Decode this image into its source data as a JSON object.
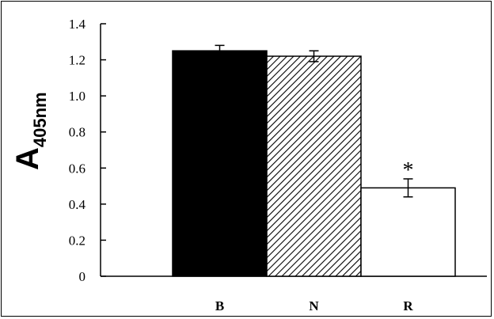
{
  "chart_data": {
    "type": "bar",
    "title": "",
    "xlabel": "",
    "ylabel_main": "A",
    "ylabel_sub": "405nm",
    "categories": [
      "B",
      "N",
      "R"
    ],
    "values": [
      1.25,
      1.22,
      0.49
    ],
    "error": [
      0.03,
      0.03,
      0.05
    ],
    "ylim": [
      0,
      1.4
    ],
    "yticks": [
      "0",
      "0.2",
      "0.4",
      "0.6",
      "0.8",
      "1.0",
      "1.2",
      "1.4"
    ],
    "ytick_values": [
      0,
      0.2,
      0.4,
      0.6,
      0.8,
      1.0,
      1.2,
      1.4
    ],
    "fills": [
      "solid",
      "hatched",
      "empty"
    ],
    "annotations": [
      {
        "category": "R",
        "text": "*"
      }
    ],
    "grid": false,
    "legend": "none"
  }
}
